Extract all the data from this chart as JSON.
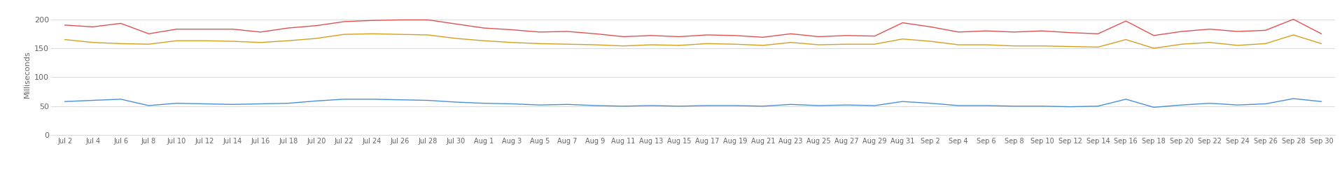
{
  "title": "",
  "ylabel": "Milliseconds",
  "ylim": [
    0,
    210
  ],
  "yticks": [
    0,
    50,
    100,
    150,
    200
  ],
  "background_color": "#ffffff",
  "grid_color": "#dddddd",
  "line_colors": {
    "account_info": "#e05252",
    "payment_init": "#d4a020",
    "monzo_app": "#4a90d9"
  },
  "x_labels": [
    "Jul 2",
    "Jul 4",
    "Jul 6",
    "Jul 8",
    "Jul 10",
    "Jul 12",
    "Jul 14",
    "Jul 16",
    "Jul 18",
    "Jul 20",
    "Jul 22",
    "Jul 24",
    "Jul 26",
    "Jul 28",
    "Jul 30",
    "Aug 1",
    "Aug 3",
    "Aug 5",
    "Aug 7",
    "Aug 9",
    "Aug 11",
    "Aug 13",
    "Aug 15",
    "Aug 17",
    "Aug 19",
    "Aug 21",
    "Aug 23",
    "Aug 25",
    "Aug 27",
    "Aug 29",
    "Aug 31",
    "Sep 2",
    "Sep 4",
    "Sep 6",
    "Sep 8",
    "Sep 10",
    "Sep 12",
    "Sep 14",
    "Sep 16",
    "Sep 18",
    "Sep 20",
    "Sep 22",
    "Sep 24",
    "Sep 26",
    "Sep 28",
    "Sep 30"
  ],
  "account_info_values": [
    190,
    187,
    193,
    175,
    183,
    183,
    183,
    178,
    185,
    189,
    196,
    198,
    199,
    199,
    192,
    185,
    182,
    178,
    179,
    175,
    170,
    172,
    170,
    173,
    172,
    169,
    175,
    170,
    172,
    171,
    194,
    187,
    178,
    180,
    178,
    180,
    177,
    175,
    197,
    172,
    179,
    183,
    179,
    181,
    200,
    175
  ],
  "payment_init_values": [
    165,
    160,
    158,
    157,
    163,
    163,
    162,
    160,
    163,
    167,
    174,
    175,
    174,
    173,
    167,
    163,
    160,
    158,
    157,
    156,
    154,
    156,
    155,
    158,
    157,
    155,
    160,
    156,
    157,
    157,
    166,
    162,
    156,
    156,
    154,
    154,
    153,
    152,
    165,
    150,
    157,
    160,
    155,
    158,
    173,
    158
  ],
  "monzo_app_values": [
    58,
    60,
    62,
    51,
    55,
    54,
    53,
    54,
    55,
    59,
    62,
    62,
    61,
    60,
    57,
    55,
    54,
    52,
    53,
    51,
    50,
    51,
    50,
    51,
    51,
    50,
    53,
    51,
    52,
    51,
    58,
    55,
    51,
    51,
    50,
    50,
    49,
    50,
    62,
    48,
    52,
    55,
    52,
    54,
    63,
    58
  ]
}
